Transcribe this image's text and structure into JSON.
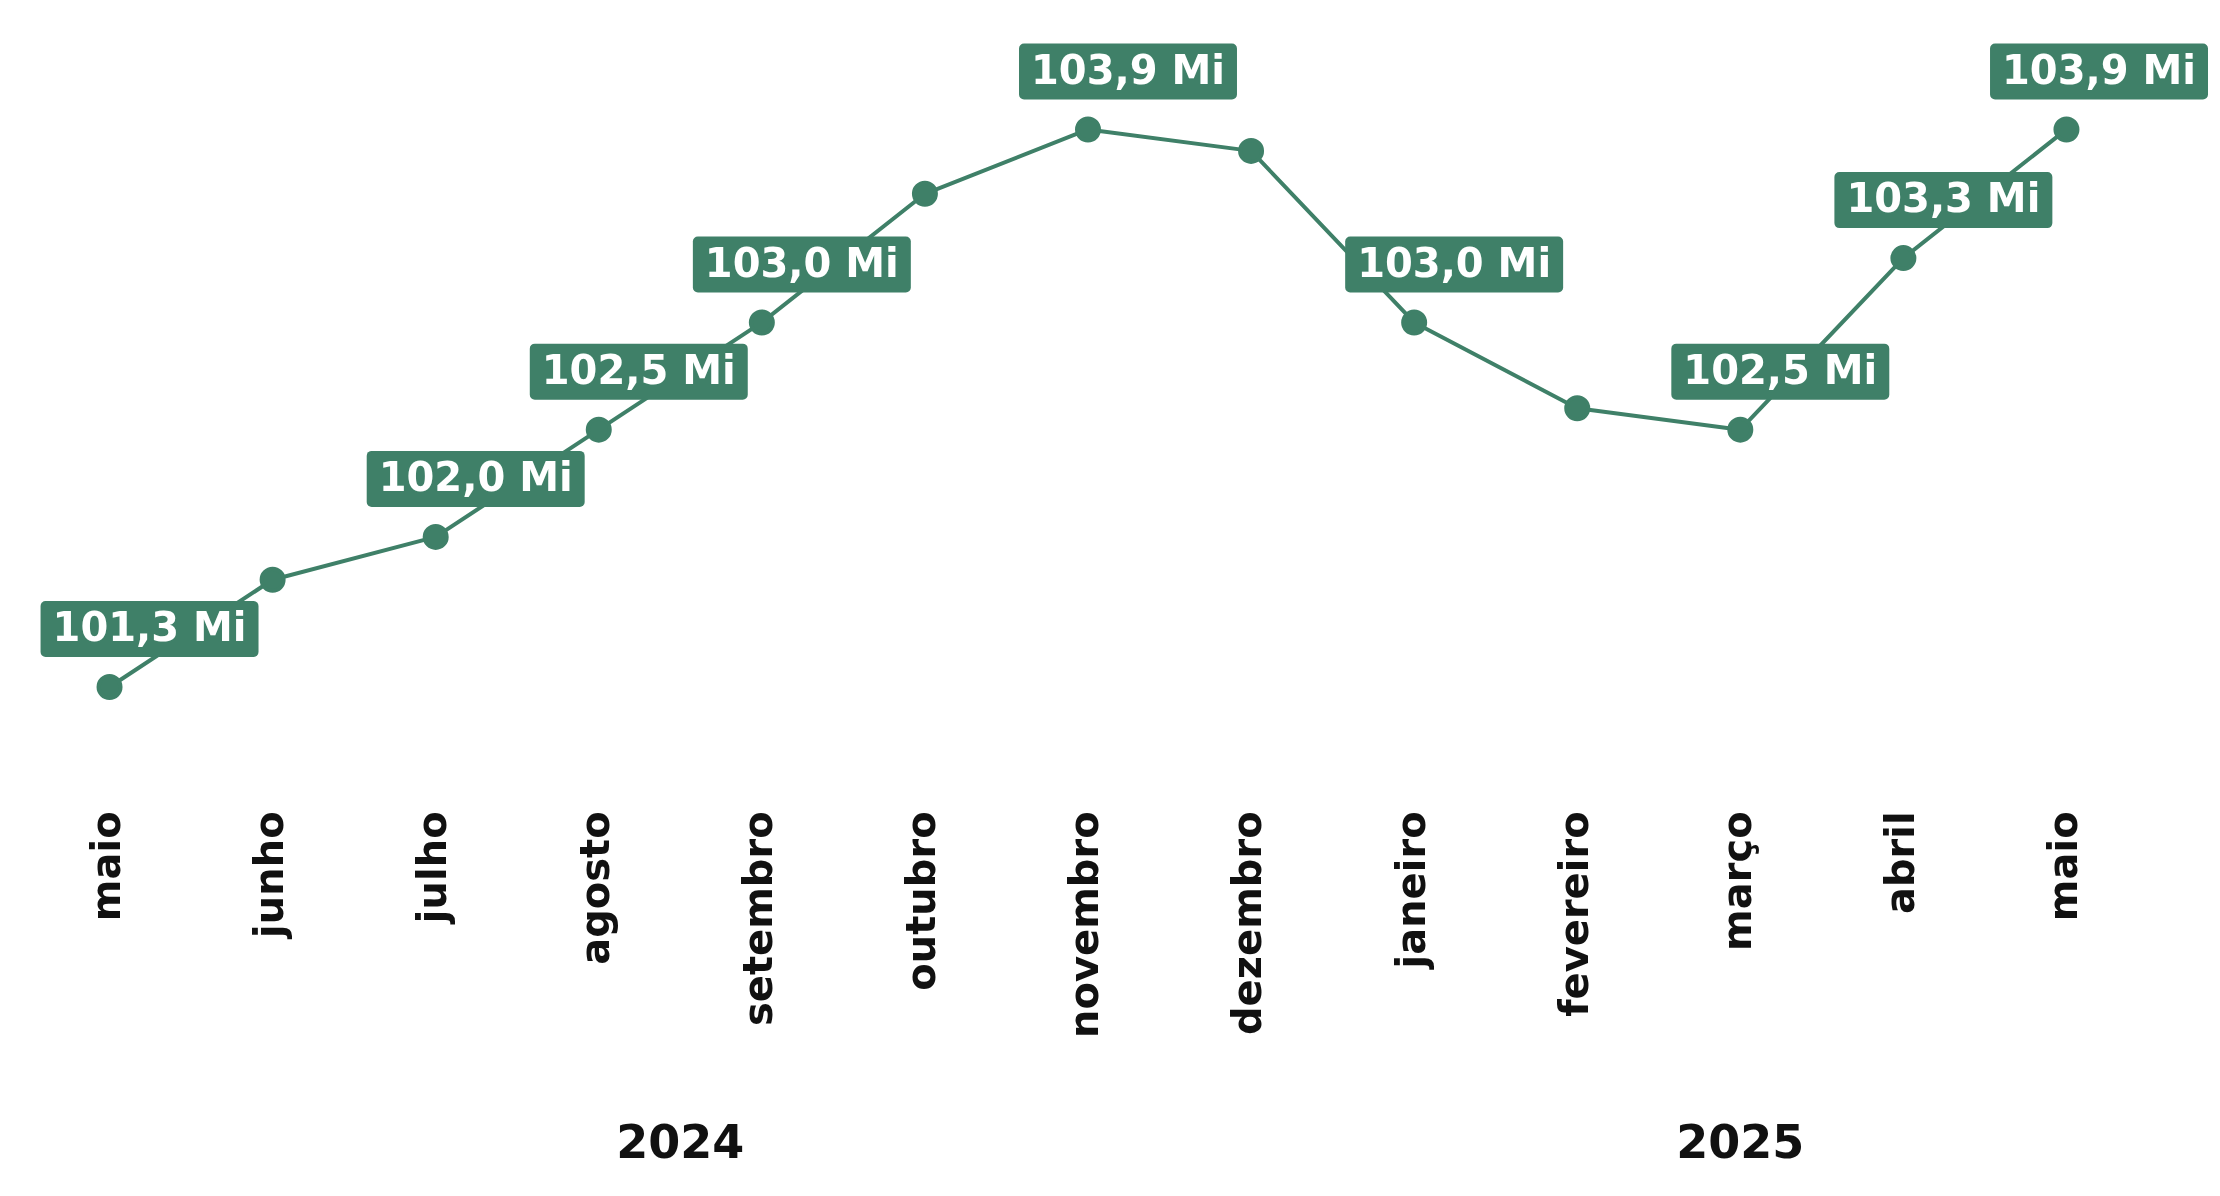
{
  "chart_data": {
    "type": "line",
    "categories": [
      "maio",
      "junho",
      "julho",
      "agosto",
      "setembro",
      "outubro",
      "novembro",
      "dezembro",
      "janeiro",
      "fevereiro",
      "março",
      "abril",
      "maio"
    ],
    "series": [
      {
        "color": "#3f8068",
        "values": [
          101.3,
          101.8,
          102.0,
          102.5,
          103.0,
          103.6,
          103.9,
          103.8,
          103.0,
          102.6,
          102.5,
          103.3,
          103.9
        ],
        "value_labels": [
          "101,3 Mi",
          null,
          "102,0 Mi",
          "102,5 Mi",
          "103,0 Mi",
          null,
          "103,9 Mi",
          null,
          "103,0 Mi",
          null,
          "102,5 Mi",
          "103,3 Mi",
          "103,9 Mi"
        ]
      }
    ],
    "annotations": [
      "2024",
      "2025"
    ],
    "marker": "circle",
    "line_style": "solid",
    "grid": false,
    "legend": false,
    "tick_labels": "x"
  }
}
